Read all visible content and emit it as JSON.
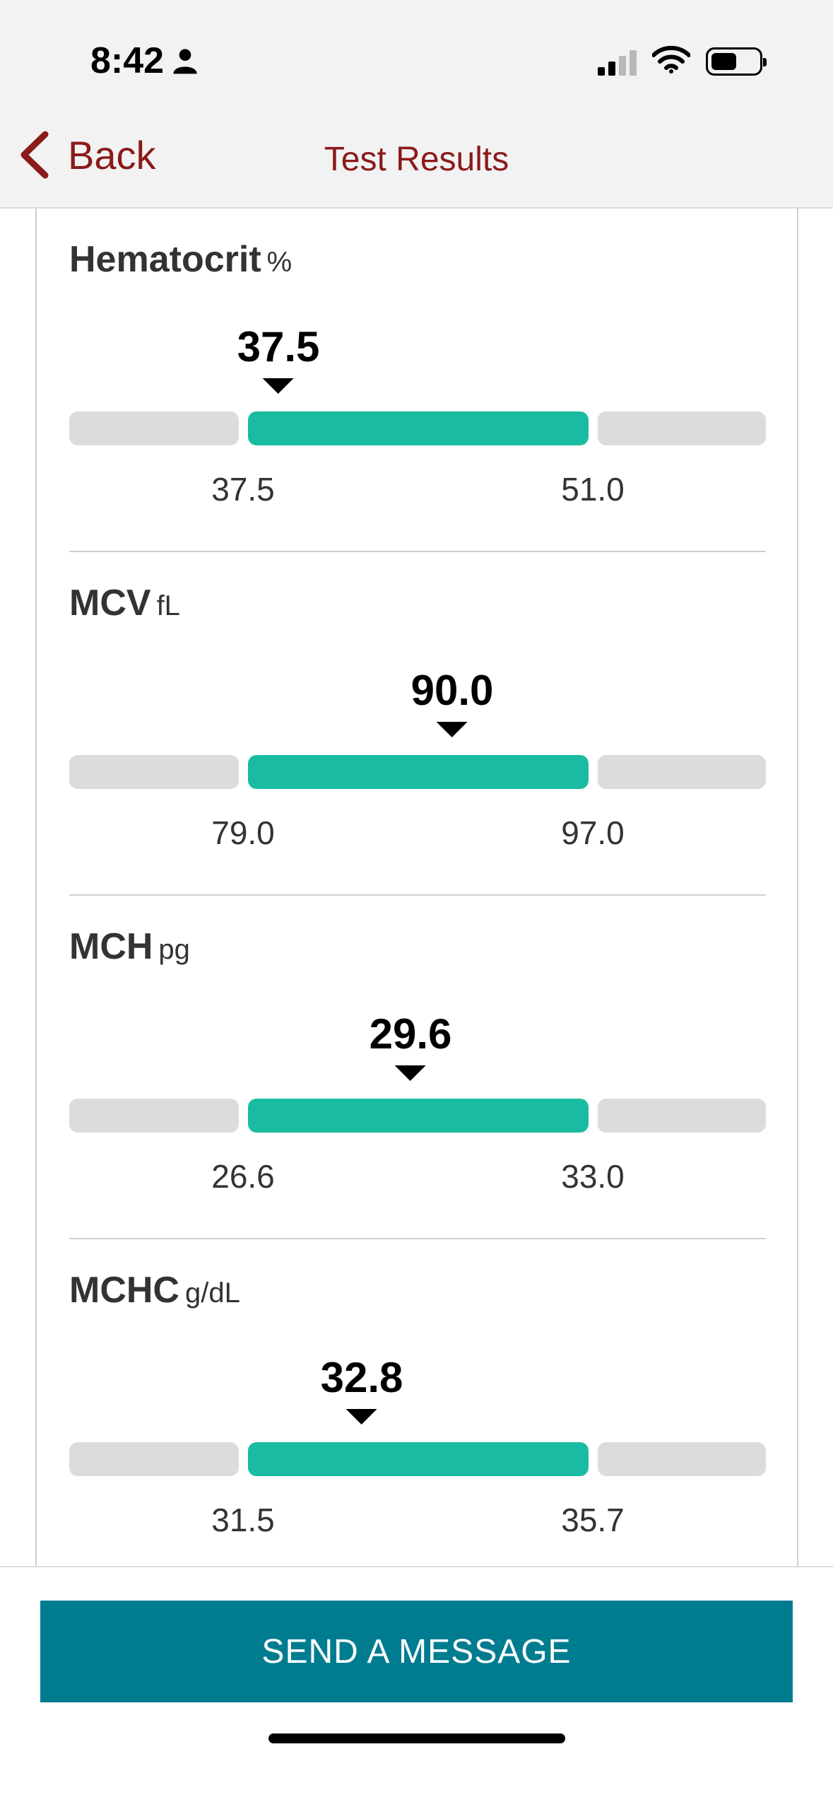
{
  "status_bar": {
    "time": "8:42",
    "icons": [
      "person-icon",
      "cellular-signal-icon",
      "wifi-icon",
      "battery-icon"
    ]
  },
  "nav": {
    "back_label": "Back",
    "title": "Test Results"
  },
  "colors": {
    "accent": "#8b1a1a",
    "normal_range": "#1abca1",
    "out_of_range": "#dcdcdc",
    "button": "#007c91"
  },
  "results": [
    {
      "name": "Hematocrit",
      "unit": "%",
      "value": "37.5",
      "low": "37.5",
      "high": "51.0",
      "marker_fraction": 0.3
    },
    {
      "name": "MCV",
      "unit": "fL",
      "value": "90.0",
      "low": "79.0",
      "high": "97.0",
      "marker_fraction": 0.55
    },
    {
      "name": "MCH",
      "unit": "pg",
      "value": "29.6",
      "low": "26.6",
      "high": "33.0",
      "marker_fraction": 0.49
    },
    {
      "name": "MCHC",
      "unit": "g/dL",
      "value": "32.8",
      "low": "31.5",
      "high": "35.7",
      "marker_fraction": 0.42
    }
  ],
  "actions": {
    "send_message_label": "SEND A MESSAGE"
  }
}
